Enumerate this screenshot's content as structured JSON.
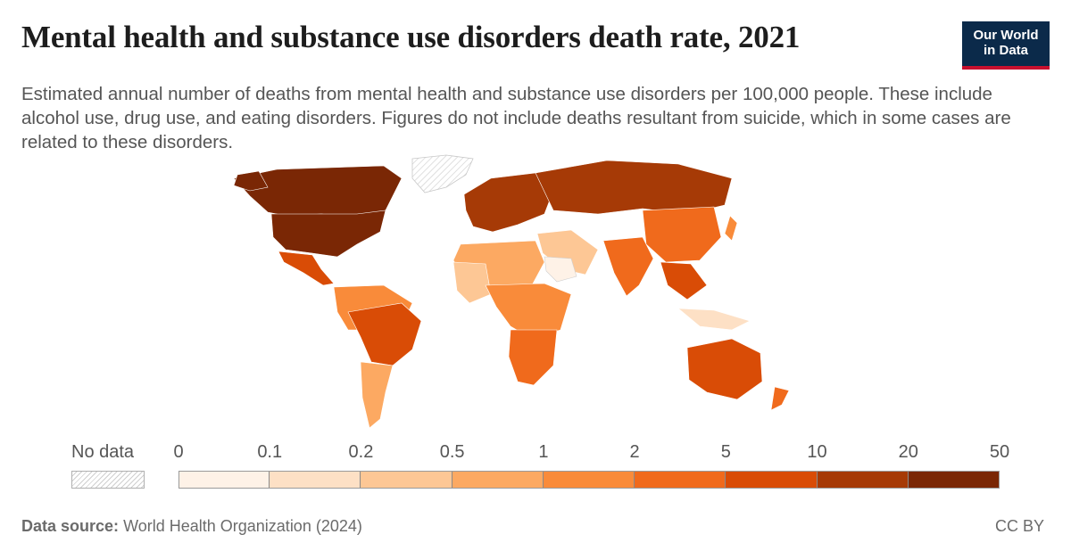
{
  "header": {
    "title": "Mental health and substance use disorders death rate, 2021",
    "subtitle": "Estimated annual number of deaths from mental health and substance use disorders per 100,000 people. These include alcohol use, drug use, and eating disorders. Figures do not include deaths resultant from suicide, which in some cases are related to these disorders."
  },
  "logo": {
    "line1": "Our World",
    "line2": "in Data"
  },
  "legend": {
    "no_data_label": "No data",
    "ticks": [
      "0",
      "0.1",
      "0.2",
      "0.5",
      "1",
      "2",
      "5",
      "10",
      "20",
      "50"
    ],
    "colors": [
      "#fef2e7",
      "#fde0c5",
      "#fdc795",
      "#fca962",
      "#f98b3a",
      "#f06a1c",
      "#d94c06",
      "#a63a06",
      "#7a2705"
    ]
  },
  "footer": {
    "source_label": "Data source:",
    "source_text": "World Health Organization (2024)",
    "license": "CC BY"
  }
}
